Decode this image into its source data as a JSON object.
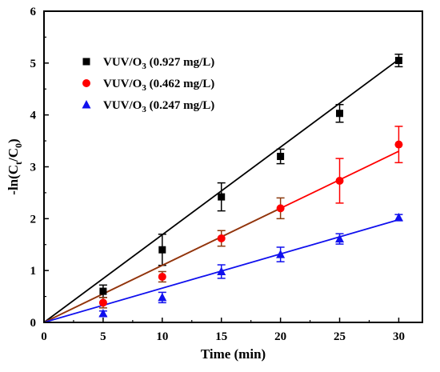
{
  "chart_data": {
    "type": "scatter",
    "xlabel": "Time  (min)",
    "ylabel_base": "-ln(C",
    "ylabel_sub1": "t",
    "ylabel_mid": "/C",
    "ylabel_sub2": "0",
    "ylabel_end": ")",
    "xlim": [
      0,
      32
    ],
    "ylim": [
      0,
      6
    ],
    "x_ticks": [
      0,
      5,
      10,
      15,
      20,
      25,
      30
    ],
    "y_ticks": [
      0,
      1,
      2,
      3,
      4,
      5,
      6
    ],
    "grid": false,
    "legend_position": "top-left",
    "series": [
      {
        "name": "VUV/O3 (0.927 mg/L)",
        "legend_prefix": "VUV/O",
        "legend_sub": "3",
        "legend_suffix": " (0.927 mg/L)",
        "marker": "square",
        "color": "#000000",
        "line_color": "#000000",
        "x": [
          0,
          5,
          10,
          15,
          20,
          25,
          30
        ],
        "y": [
          0,
          0.6,
          1.4,
          2.42,
          3.2,
          4.03,
          5.05
        ],
        "err": [
          0,
          0.12,
          0.3,
          0.27,
          0.14,
          0.17,
          0.12
        ],
        "fit": [
          0,
          5.07
        ]
      },
      {
        "name": "VUV/O3 (0.462 mg/L)",
        "legend_prefix": "VUV/O",
        "legend_sub": "3",
        "legend_suffix": " (0.462 mg/L)",
        "marker": "circle",
        "color": "#ff0000",
        "line_color": "#ff0000",
        "x": [
          0,
          5,
          10,
          15,
          20,
          25,
          30
        ],
        "y": [
          0,
          0.38,
          0.88,
          1.62,
          2.2,
          2.73,
          3.43
        ],
        "err": [
          0,
          0.1,
          0.1,
          0.15,
          0.2,
          0.43,
          0.35
        ],
        "fit": [
          0,
          3.3
        ],
        "overlay_fit": [
          0,
          2.2
        ],
        "overlay_color": "#8b3a0e"
      },
      {
        "name": "VUV/O3 (0.247 mg/L)",
        "legend_prefix": "VUV/O",
        "legend_sub": "3",
        "legend_suffix": " (0.247 mg/L)",
        "marker": "triangle",
        "color": "#1010ee",
        "line_color": "#1010ee",
        "x": [
          0,
          5,
          10,
          15,
          20,
          25,
          30
        ],
        "y": [
          0,
          0.17,
          0.48,
          0.98,
          1.31,
          1.61,
          2.02
        ],
        "err": [
          0,
          0.05,
          0.1,
          0.13,
          0.14,
          0.1,
          0.06
        ],
        "fit": [
          0,
          1.98
        ]
      }
    ]
  }
}
